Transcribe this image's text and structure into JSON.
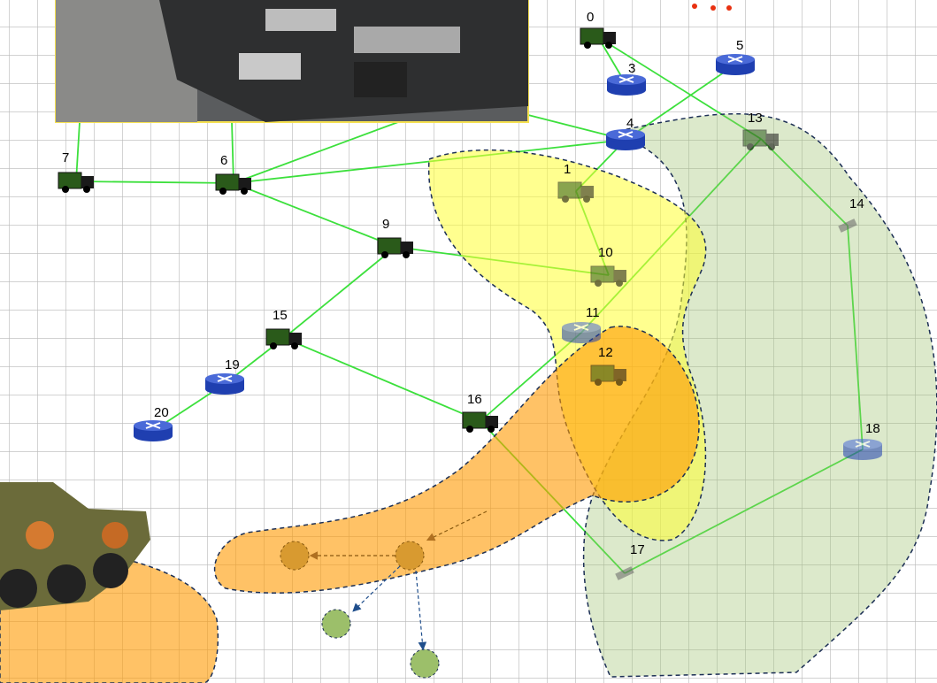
{
  "nodes": [
    {
      "label": "0"
    },
    {
      "label": "1"
    },
    {
      "label": "3"
    },
    {
      "label": "4"
    },
    {
      "label": "5"
    },
    {
      "label": "6"
    },
    {
      "label": "7"
    },
    {
      "label": "9"
    },
    {
      "label": "10"
    },
    {
      "label": "11"
    },
    {
      "label": "12"
    },
    {
      "label": "13"
    },
    {
      "label": "14"
    },
    {
      "label": "15"
    },
    {
      "label": "16"
    },
    {
      "label": "17"
    },
    {
      "label": "18"
    },
    {
      "label": "19"
    },
    {
      "label": "20"
    }
  ]
}
